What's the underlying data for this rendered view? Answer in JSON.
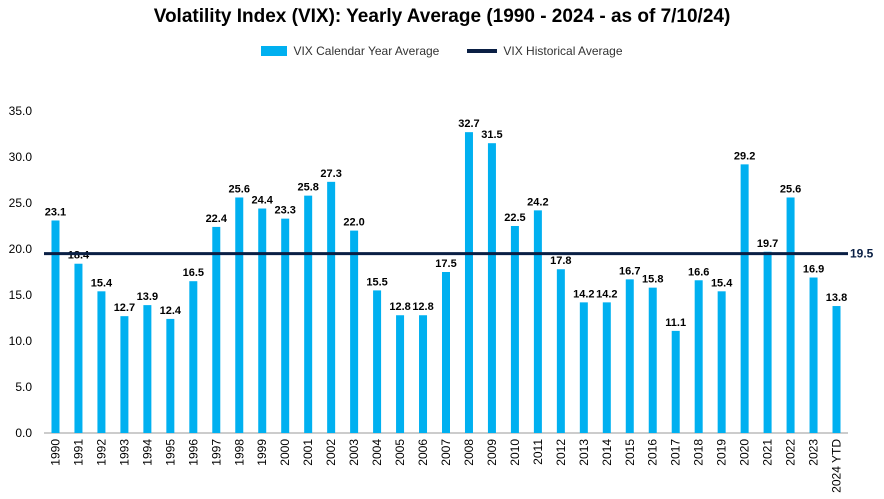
{
  "chart_data": {
    "type": "bar",
    "title": "Volatility Index (VIX): Yearly Average (1990 - 2024 - as of 7/10/24)",
    "categories": [
      "1990",
      "1991",
      "1992",
      "1993",
      "1994",
      "1995",
      "1996",
      "1997",
      "1998",
      "1999",
      "2000",
      "2001",
      "2002",
      "2003",
      "2004",
      "2005",
      "2006",
      "2007",
      "2008",
      "2009",
      "2010",
      "2011",
      "2012",
      "2013",
      "2014",
      "2015",
      "2016",
      "2017",
      "2018",
      "2019",
      "2020",
      "2021",
      "2022",
      "2023",
      "2024 YTD"
    ],
    "series": [
      {
        "name": "VIX Calendar Year Average",
        "color": "#00B0F0",
        "values": [
          23.1,
          18.4,
          15.4,
          12.7,
          13.9,
          12.4,
          16.5,
          22.4,
          25.6,
          24.4,
          23.3,
          25.8,
          27.3,
          22.0,
          15.5,
          12.8,
          12.8,
          17.5,
          32.7,
          31.5,
          22.5,
          24.2,
          17.8,
          14.2,
          14.2,
          16.7,
          15.8,
          11.1,
          16.6,
          15.4,
          29.2,
          19.7,
          25.6,
          16.9,
          13.8
        ],
        "labels": [
          "23.1",
          "18.4",
          "15.4",
          "12.7",
          "13.9",
          "12.4",
          "16.5",
          "22.4",
          "25.6",
          "24.4",
          "23.3",
          "25.8",
          "27.3",
          "22.0",
          "15.5",
          "12.8",
          "12.8",
          "17.5",
          "32.7",
          "31.5",
          "22.5",
          "24.2",
          "17.8",
          "14.2",
          "14.2",
          "16.7",
          "15.8",
          "11.1",
          "16.6",
          "15.4",
          "29.2",
          "19.7",
          "25.6",
          "16.9",
          "13.8"
        ]
      }
    ],
    "reference_line": {
      "name": "VIX Historical Average",
      "value": 19.5,
      "label": "19.5",
      "color": "#0A1F44"
    },
    "y_ticks": [
      "0.0",
      "5.0",
      "10.0",
      "15.0",
      "20.0",
      "25.0",
      "30.0",
      "35.0"
    ],
    "ylim": [
      0,
      35
    ],
    "legend_position": "top-center",
    "grid": false
  }
}
